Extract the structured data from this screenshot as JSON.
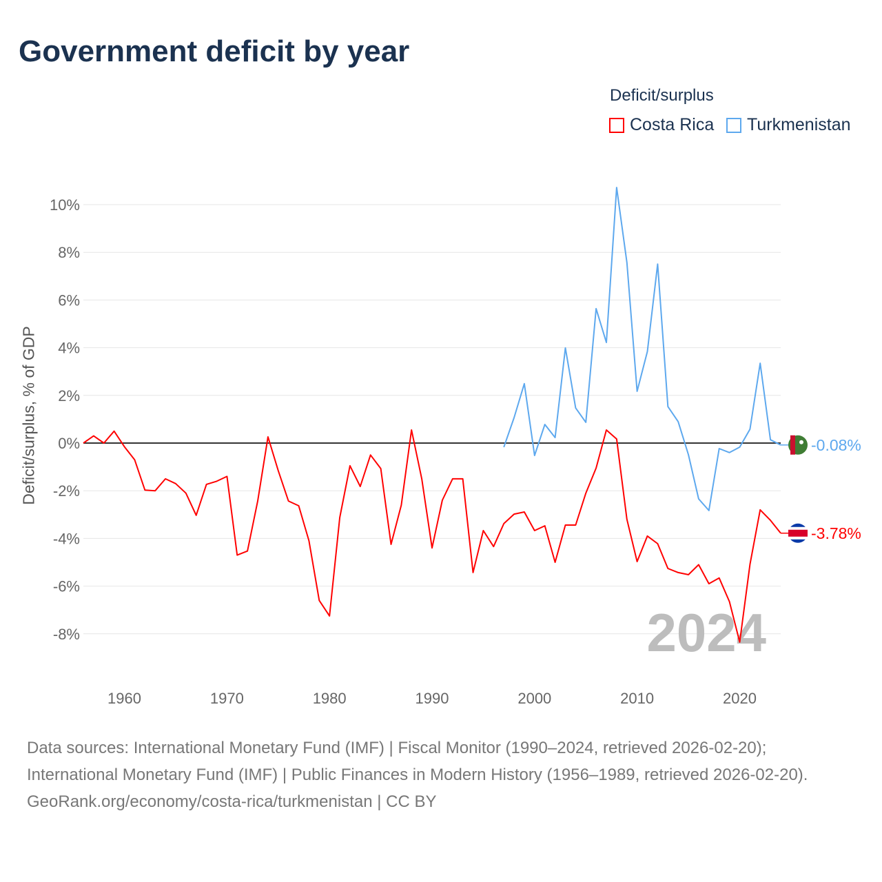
{
  "title": "Government deficit by year",
  "legend": {
    "title": "Deficit/surplus",
    "items": [
      {
        "label": "Costa Rica",
        "color": "#ff0000"
      },
      {
        "label": "Turkmenistan",
        "color": "#5da8ee"
      }
    ]
  },
  "footer": {
    "sources": "Data sources: International Monetary Fund (IMF) | Fiscal Monitor (1990–2024, retrieved 2026-02-20); International Monetary Fund (IMF) | Public Finances in Modern History (1956–1989, retrieved 2026-02-20).",
    "credit": "GeoRank.org/economy/costa-rica/turkmenistan | CC BY"
  },
  "chart_data": {
    "type": "line",
    "title": "Government deficit by year",
    "xlabel": "",
    "ylabel": "Deficit/surplus, % of GDP",
    "xlim": [
      1956,
      2024
    ],
    "ylim": [
      -10,
      11
    ],
    "xticks": [
      1960,
      1970,
      1980,
      1990,
      2000,
      2010,
      2020
    ],
    "yticks": [
      -8,
      -6,
      -4,
      -2,
      0,
      2,
      4,
      6,
      8,
      10
    ],
    "ytick_labels": [
      "-8%",
      "-6%",
      "-4%",
      "-2%",
      "0%",
      "2%",
      "4%",
      "6%",
      "8%",
      "10%"
    ],
    "year_watermark": "2024",
    "legend_position": "top-right",
    "series": [
      {
        "name": "Costa Rica",
        "color": "#ff0000",
        "start_year": 1956,
        "end_label": "-3.78%",
        "values": [
          0.0,
          0.3,
          0.0,
          0.5,
          -0.15,
          -0.7,
          -1.97,
          -2.0,
          -1.5,
          -1.7,
          -2.1,
          -3.03,
          -1.73,
          -1.6,
          -1.4,
          -4.7,
          -4.53,
          -2.43,
          0.26,
          -1.16,
          -2.43,
          -2.63,
          -4.1,
          -6.6,
          -7.25,
          -3.12,
          -0.95,
          -1.82,
          -0.5,
          -1.07,
          -4.25,
          -2.6,
          0.55,
          -1.5,
          -4.4,
          -2.4,
          -1.5,
          -1.5,
          -5.43,
          -3.67,
          -4.34,
          -3.38,
          -2.98,
          -2.89,
          -3.67,
          -3.47,
          -5.0,
          -3.44,
          -3.44,
          -2.1,
          -1.05,
          0.55,
          0.17,
          -3.2,
          -4.97,
          -3.9,
          -4.22,
          -5.26,
          -5.43,
          -5.52,
          -5.1,
          -5.9,
          -5.66,
          -6.65,
          -8.35,
          -5.09,
          -2.8,
          -3.24,
          -3.78
        ]
      },
      {
        "name": "Turkmenistan",
        "color": "#5da8ee",
        "start_year": 1997,
        "end_label": "-0.08%",
        "values": [
          -0.17,
          1.07,
          2.49,
          -0.52,
          0.78,
          0.23,
          3.99,
          1.47,
          0.87,
          5.64,
          4.22,
          10.72,
          7.57,
          2.17,
          3.84,
          7.51,
          1.53,
          0.9,
          -0.49,
          -2.34,
          -2.83,
          -0.23,
          -0.4,
          -0.17,
          0.58,
          3.35,
          0.14,
          -0.08
        ]
      }
    ]
  }
}
